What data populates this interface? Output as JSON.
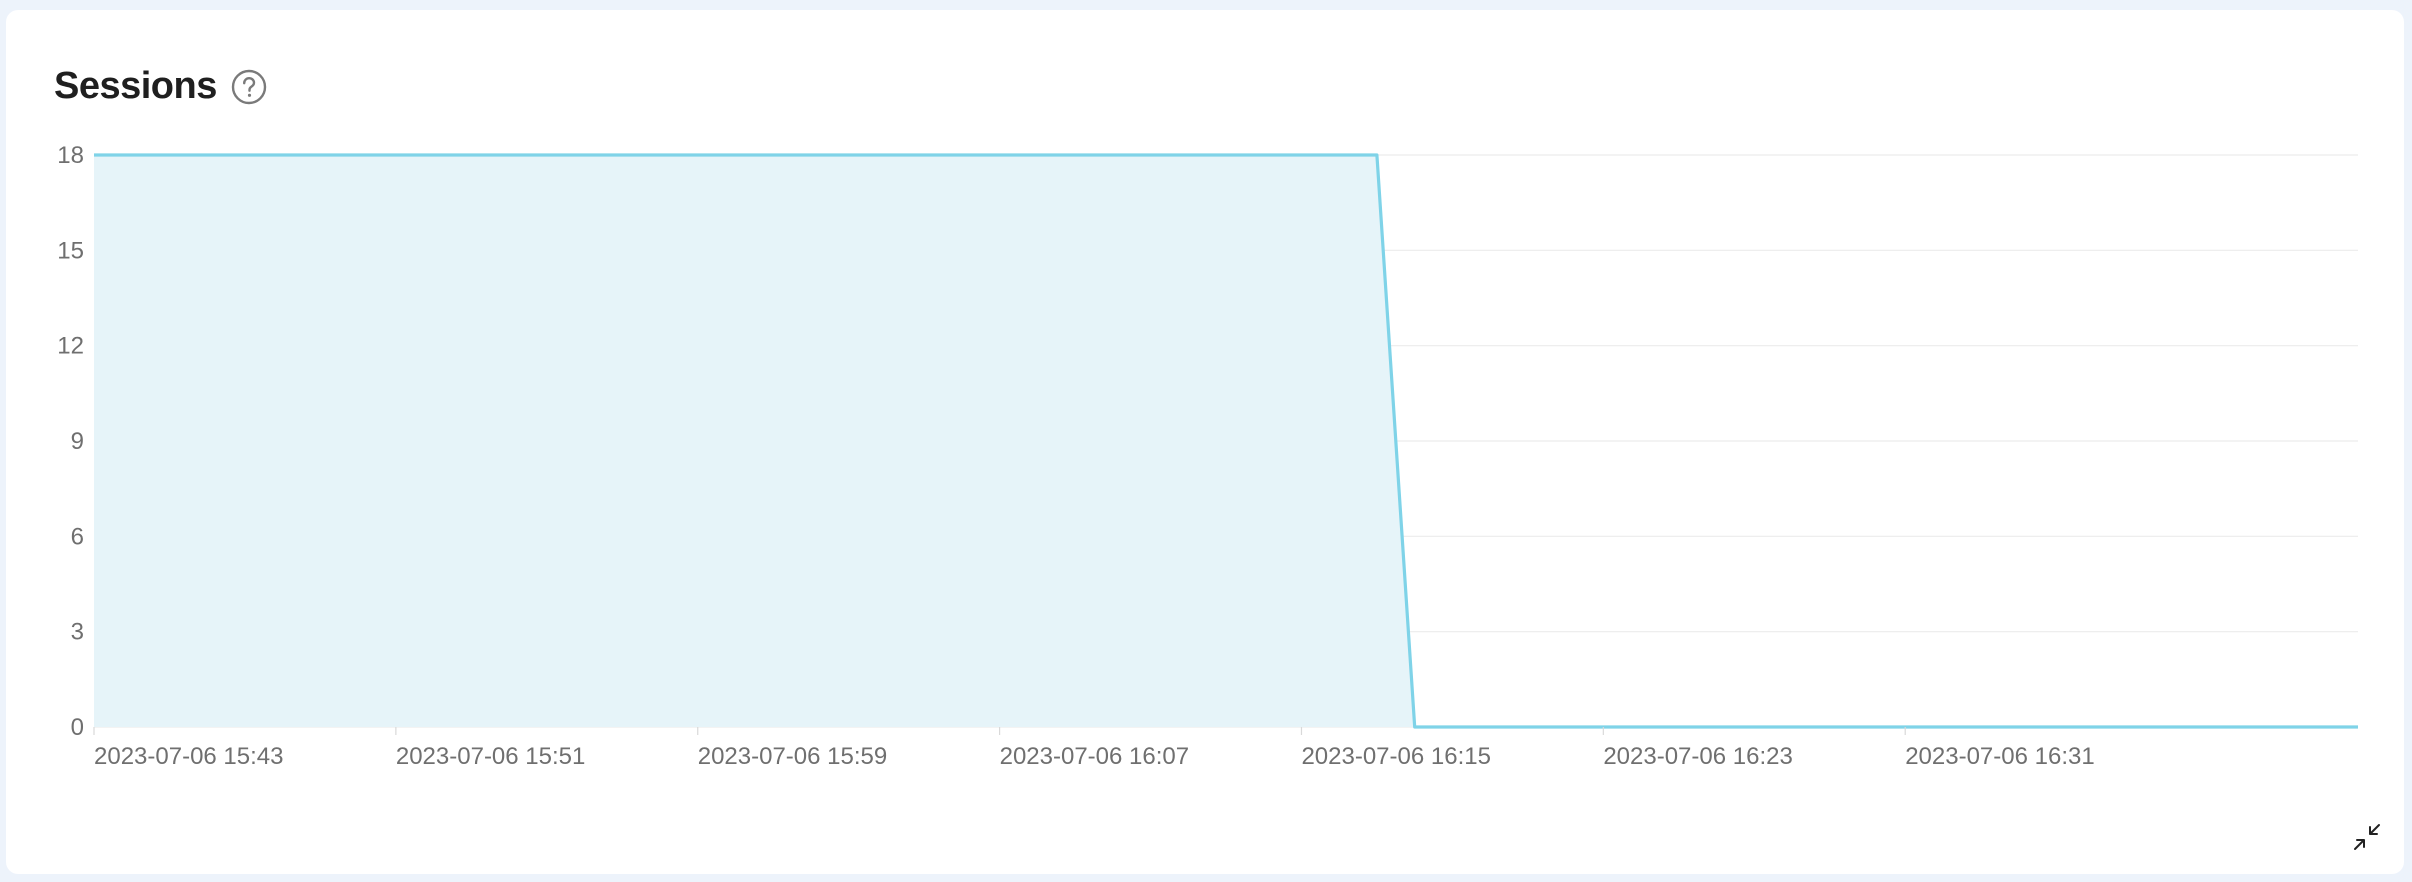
{
  "panel": {
    "title": "Sessions",
    "help_icon": "question-circle-icon",
    "collapse_icon": "shrink-arrows-icon"
  },
  "chart_data": {
    "type": "area",
    "title": "Sessions",
    "xlabel": "",
    "ylabel": "",
    "ylim": [
      0,
      18
    ],
    "y_ticks": [
      0,
      3,
      6,
      9,
      12,
      15,
      18
    ],
    "x_tick_labels": [
      "2023-07-06 15:43",
      "2023-07-06 15:51",
      "2023-07-06 15:59",
      "2023-07-06 16:07",
      "2023-07-06 16:15",
      "2023-07-06 16:23",
      "2023-07-06 16:31"
    ],
    "x": [
      "2023-07-06 15:43",
      "2023-07-06 16:17",
      "2023-07-06 16:18",
      "2023-07-06 16:43"
    ],
    "series": [
      {
        "values": [
          18,
          18,
          0,
          0
        ]
      }
    ],
    "grid": true,
    "colors": {
      "line": "#7fd3e8",
      "fill": "#e6f4f9",
      "grid": "#ececec"
    }
  }
}
